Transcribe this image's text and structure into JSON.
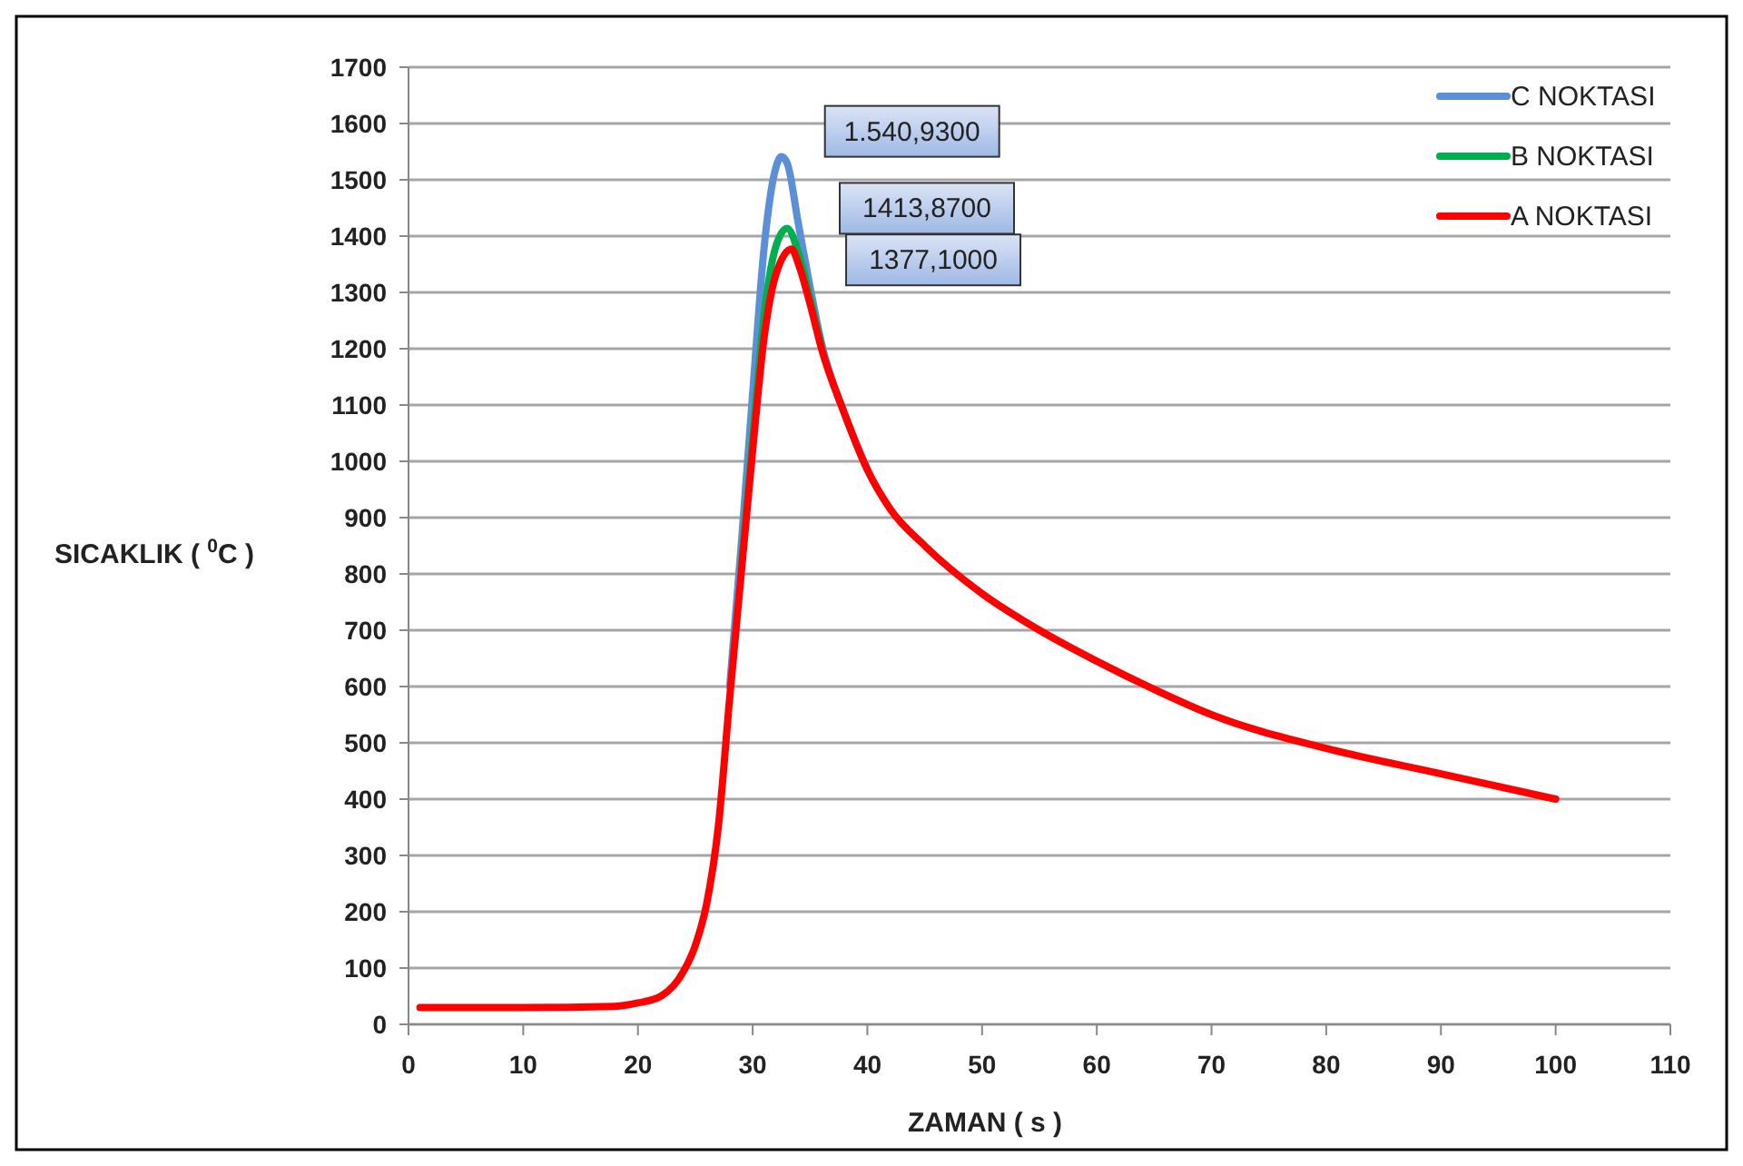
{
  "chart_data": {
    "type": "line",
    "xlabel": "ZAMAN ( s )",
    "ylabel": "SICAKLIK ( $^{0}$C )",
    "xlim": [
      0,
      110
    ],
    "xticks": [
      0,
      10,
      20,
      30,
      40,
      50,
      60,
      70,
      80,
      90,
      100,
      110
    ],
    "ylim": [
      0,
      1700
    ],
    "yticks": [
      0,
      100,
      200,
      300,
      400,
      500,
      600,
      700,
      800,
      900,
      1000,
      1100,
      1200,
      1300,
      1400,
      1500,
      1600,
      1700
    ],
    "grid": "y",
    "legend": "top right",
    "marker": "none",
    "line_style": "solid",
    "series": [
      {
        "name": "C NOKTASI",
        "color": "#5b8fd6",
        "x": [
          28,
          29,
          30,
          31,
          32,
          32.5,
          33,
          34,
          35,
          36,
          38,
          40
        ],
        "values": [
          600,
          850,
          1120,
          1380,
          1520,
          1540.93,
          1530,
          1420,
          1310,
          1210,
          1085,
          985
        ]
      },
      {
        "name": "B NOKTASI",
        "color": "#00b050",
        "x": [
          29,
          30,
          31,
          32,
          33,
          34,
          35,
          36
        ],
        "values": [
          810,
          1040,
          1260,
          1380,
          1413.87,
          1370,
          1290,
          1205
        ]
      },
      {
        "name": "A NOKTASI",
        "color": "#ff0000",
        "x": [
          1,
          10,
          18,
          20,
          22,
          24,
          25,
          26,
          27,
          28,
          29,
          30,
          31,
          32,
          33.4,
          34,
          35,
          36,
          38,
          40,
          42,
          45,
          50,
          55,
          60,
          65,
          70,
          80,
          90,
          100
        ],
        "values": [
          30,
          30,
          32,
          38,
          50,
          95,
          140,
          215,
          350,
          580,
          800,
          1020,
          1220,
          1330,
          1377.1,
          1350,
          1280,
          1200,
          1085,
          985,
          915,
          850,
          765,
          700,
          645,
          595,
          550,
          490,
          445,
          400
        ]
      }
    ],
    "annotations": [
      {
        "text": "1.540,9300",
        "x": 32.5,
        "y": 1540.93
      },
      {
        "text": "1413,8700",
        "x": 33,
        "y": 1413.87
      },
      {
        "text": "1377,1000",
        "x": 33.4,
        "y": 1377.1
      }
    ]
  }
}
